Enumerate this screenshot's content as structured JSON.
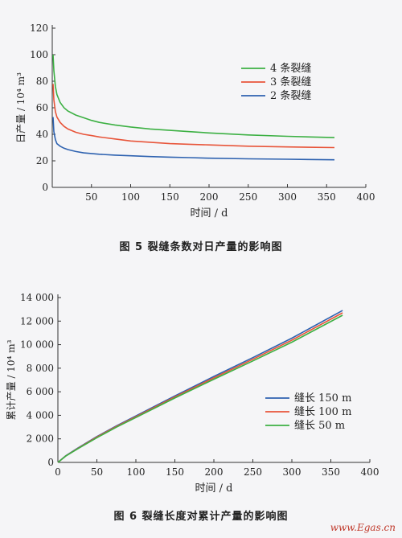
{
  "chart_data": [
    {
      "type": "line",
      "ylabel": "日产量 / 10⁴ m³",
      "xlabel": "时间 / d",
      "xlim": [
        0,
        400
      ],
      "ylim": [
        0,
        120
      ],
      "xticks": [
        50,
        100,
        150,
        200,
        250,
        300,
        350,
        400
      ],
      "yticks": [
        0,
        20,
        40,
        60,
        80,
        100,
        120
      ],
      "legend_position": "top-right",
      "series": [
        {
          "name": "4 条裂缝",
          "color": "#3cb043",
          "x": [
            1,
            2,
            4,
            6,
            10,
            15,
            20,
            30,
            40,
            50,
            60,
            80,
            100,
            125,
            150,
            175,
            200,
            250,
            300,
            360
          ],
          "y": [
            100,
            88,
            76,
            70,
            64,
            60,
            57.5,
            54.5,
            52.5,
            50.5,
            49,
            47,
            45.5,
            44,
            43,
            42,
            41,
            39.5,
            38.5,
            37.5
          ]
        },
        {
          "name": "3 条裂缝",
          "color": "#e8553a",
          "x": [
            1,
            2,
            4,
            6,
            10,
            15,
            20,
            30,
            40,
            50,
            60,
            80,
            100,
            125,
            150,
            175,
            200,
            250,
            300,
            360
          ],
          "y": [
            78,
            66,
            57,
            53,
            49,
            46,
            44,
            41.5,
            40,
            39,
            38,
            36.5,
            35,
            34,
            33,
            32.5,
            32,
            31,
            30.5,
            30
          ]
        },
        {
          "name": "2 条裂缝",
          "color": "#2e62b0",
          "x": [
            1,
            2,
            4,
            6,
            10,
            15,
            20,
            30,
            40,
            50,
            60,
            80,
            100,
            125,
            150,
            175,
            200,
            250,
            300,
            360
          ],
          "y": [
            53,
            42,
            36,
            33,
            31,
            29.5,
            28.5,
            27,
            26,
            25.5,
            25,
            24.3,
            23.8,
            23.2,
            22.8,
            22.4,
            22,
            21.5,
            21.2,
            20.8
          ]
        }
      ]
    },
    {
      "type": "line",
      "ylabel": "累计产量 / 10⁴ m³",
      "xlabel": "时间 / d",
      "xlim": [
        0,
        400
      ],
      "ylim": [
        0,
        14000
      ],
      "xticks": [
        0,
        50,
        100,
        150,
        200,
        250,
        300,
        350,
        400
      ],
      "yticks": [
        0,
        2000,
        4000,
        6000,
        8000,
        10000,
        12000,
        14000
      ],
      "ytick_labels": [
        "0",
        "2 000",
        "4 000",
        "6 000",
        "8 000",
        "10 000",
        "12 000",
        "14 000"
      ],
      "legend_position": "bottom-right",
      "series": [
        {
          "name": "缝长 150 m",
          "color": "#2e62b0",
          "x": [
            0,
            10,
            25,
            50,
            75,
            100,
            150,
            200,
            250,
            300,
            365
          ],
          "y": [
            0,
            560,
            1200,
            2200,
            3100,
            3950,
            5650,
            7300,
            8900,
            10550,
            12900
          ]
        },
        {
          "name": "缝长 100 m",
          "color": "#e8553a",
          "x": [
            0,
            10,
            25,
            50,
            75,
            100,
            150,
            200,
            250,
            300,
            365
          ],
          "y": [
            0,
            545,
            1170,
            2150,
            3050,
            3880,
            5560,
            7180,
            8760,
            10380,
            12700
          ]
        },
        {
          "name": "缝长 50 m",
          "color": "#3cb043",
          "x": [
            0,
            10,
            25,
            50,
            75,
            100,
            150,
            200,
            250,
            300,
            365
          ],
          "y": [
            0,
            530,
            1140,
            2100,
            2990,
            3810,
            5470,
            7060,
            8620,
            10210,
            12500
          ]
        }
      ]
    }
  ],
  "captions": {
    "fig5": "图 5    裂缝条数对日产量的影响图",
    "fig6": "图 6    裂缝长度对累计产量的影响图"
  },
  "watermark": "www.Egas.cn"
}
